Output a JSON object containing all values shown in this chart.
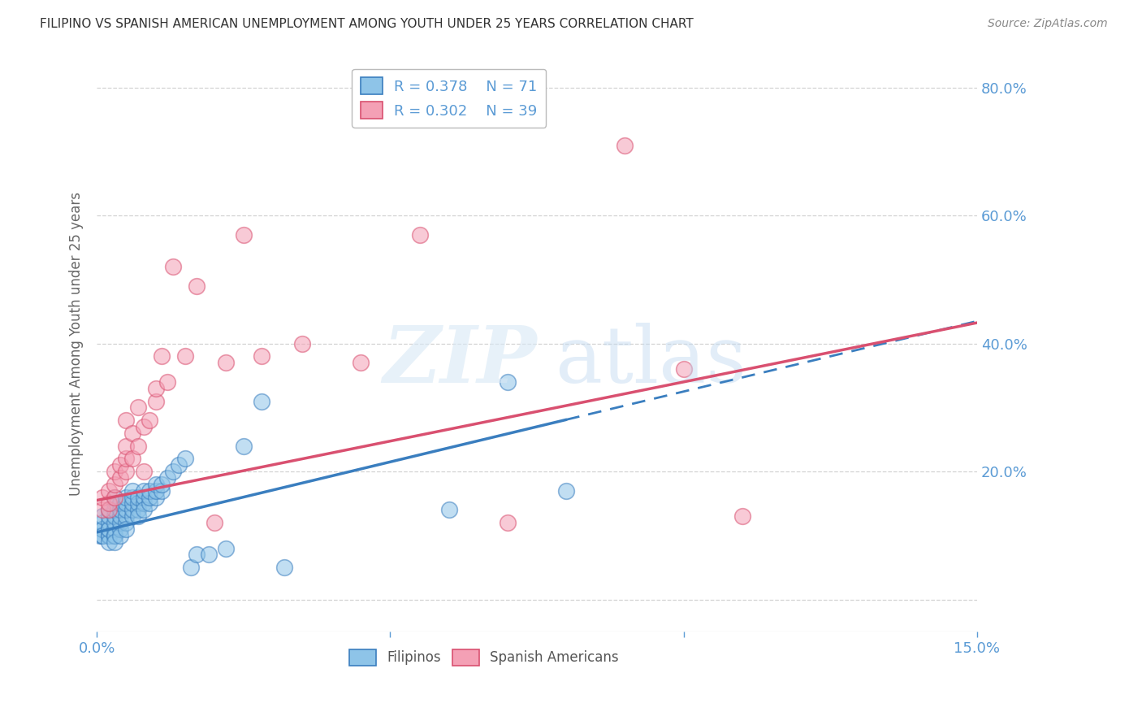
{
  "title": "FILIPINO VS SPANISH AMERICAN UNEMPLOYMENT AMONG YOUTH UNDER 25 YEARS CORRELATION CHART",
  "source": "Source: ZipAtlas.com",
  "ylabel": "Unemployment Among Youth under 25 years",
  "xlim": [
    0.0,
    0.15
  ],
  "ylim": [
    -0.05,
    0.85
  ],
  "legend_R1": "R = 0.378",
  "legend_N1": "N = 71",
  "legend_R2": "R = 0.302",
  "legend_N2": "N = 39",
  "filipinos_color": "#8ec4e8",
  "spanish_color": "#f4a0b5",
  "trend_filipino_color": "#3a7ebf",
  "trend_spanish_color": "#d95070",
  "background_color": "#ffffff",
  "grid_color": "#c8c8c8",
  "tick_color": "#5b9bd5",
  "filipinos_x": [
    0.0005,
    0.001,
    0.001,
    0.001,
    0.001,
    0.001,
    0.001,
    0.002,
    0.002,
    0.002,
    0.002,
    0.002,
    0.002,
    0.002,
    0.002,
    0.003,
    0.003,
    0.003,
    0.003,
    0.003,
    0.003,
    0.003,
    0.003,
    0.003,
    0.004,
    0.004,
    0.004,
    0.004,
    0.004,
    0.004,
    0.005,
    0.005,
    0.005,
    0.005,
    0.005,
    0.005,
    0.006,
    0.006,
    0.006,
    0.006,
    0.006,
    0.007,
    0.007,
    0.007,
    0.007,
    0.008,
    0.008,
    0.008,
    0.008,
    0.009,
    0.009,
    0.009,
    0.01,
    0.01,
    0.01,
    0.011,
    0.011,
    0.012,
    0.013,
    0.014,
    0.015,
    0.016,
    0.017,
    0.019,
    0.022,
    0.025,
    0.028,
    0.032,
    0.06,
    0.07,
    0.08
  ],
  "filipinos_y": [
    0.1,
    0.11,
    0.1,
    0.12,
    0.11,
    0.1,
    0.13,
    0.1,
    0.11,
    0.12,
    0.1,
    0.09,
    0.11,
    0.13,
    0.14,
    0.1,
    0.11,
    0.12,
    0.13,
    0.1,
    0.09,
    0.14,
    0.15,
    0.16,
    0.11,
    0.12,
    0.13,
    0.14,
    0.1,
    0.15,
    0.12,
    0.13,
    0.14,
    0.11,
    0.15,
    0.16,
    0.13,
    0.14,
    0.15,
    0.16,
    0.17,
    0.14,
    0.15,
    0.16,
    0.13,
    0.15,
    0.16,
    0.17,
    0.14,
    0.15,
    0.16,
    0.17,
    0.16,
    0.17,
    0.18,
    0.17,
    0.18,
    0.19,
    0.2,
    0.21,
    0.22,
    0.05,
    0.07,
    0.07,
    0.08,
    0.24,
    0.31,
    0.05,
    0.14,
    0.34,
    0.17
  ],
  "spanish_x": [
    0.001,
    0.001,
    0.002,
    0.002,
    0.002,
    0.003,
    0.003,
    0.003,
    0.004,
    0.004,
    0.005,
    0.005,
    0.005,
    0.005,
    0.006,
    0.006,
    0.007,
    0.007,
    0.008,
    0.008,
    0.009,
    0.01,
    0.01,
    0.011,
    0.012,
    0.013,
    0.015,
    0.017,
    0.02,
    0.022,
    0.025,
    0.028,
    0.035,
    0.045,
    0.055,
    0.07,
    0.09,
    0.1,
    0.11
  ],
  "spanish_y": [
    0.14,
    0.16,
    0.14,
    0.15,
    0.17,
    0.16,
    0.18,
    0.2,
    0.19,
    0.21,
    0.2,
    0.22,
    0.24,
    0.28,
    0.22,
    0.26,
    0.24,
    0.3,
    0.2,
    0.27,
    0.28,
    0.31,
    0.33,
    0.38,
    0.34,
    0.52,
    0.38,
    0.49,
    0.12,
    0.37,
    0.57,
    0.38,
    0.4,
    0.37,
    0.57,
    0.12,
    0.71,
    0.36,
    0.13
  ],
  "fil_trend_x0": 0.0,
  "fil_trend_x_solid_end": 0.08,
  "fil_trend_x_dashed_end": 0.15,
  "fil_trend_y0": 0.105,
  "fil_trend_slope": 2.2,
  "spa_trend_x0": 0.0,
  "spa_trend_x_end": 0.15,
  "spa_trend_y0": 0.155,
  "spa_trend_slope": 1.85
}
